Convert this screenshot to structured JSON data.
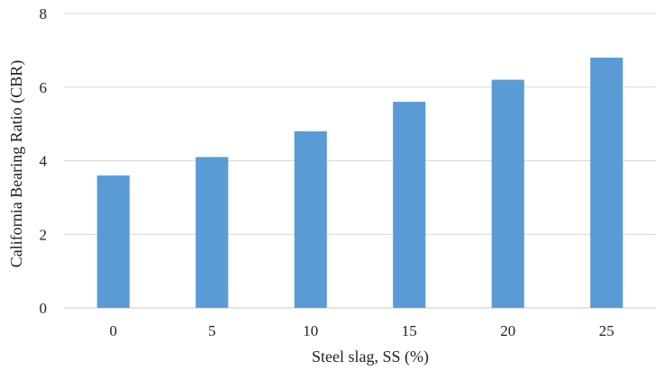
{
  "chart_data": {
    "type": "bar",
    "title": "",
    "xlabel": "Steel slag, SS (%)",
    "ylabel": "California Bearing Ratio (CBR)",
    "categories": [
      "0",
      "5",
      "10",
      "15",
      "20",
      "25"
    ],
    "values": [
      3.6,
      4.1,
      4.8,
      5.6,
      6.2,
      6.8
    ],
    "ylim": [
      0,
      8
    ],
    "yticks": [
      "0",
      "2",
      "4",
      "6",
      "8"
    ],
    "grid": true,
    "bar_color": "#5b9bd5",
    "grid_color": "#d9d9d9"
  }
}
